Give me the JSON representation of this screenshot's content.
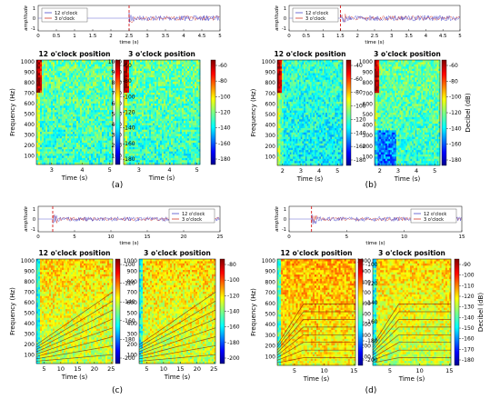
{
  "panels": [
    {
      "label": "(a)",
      "waveform": {
        "ylabel": "amplitude",
        "xlabel": "time (s)",
        "xticks": [
          "0",
          "0.5",
          "1",
          "1.5",
          "2",
          "2.5",
          "3",
          "3.5",
          "4",
          "4.5",
          "5"
        ],
        "yticks": [
          "1",
          "0",
          "-1"
        ],
        "legend": [
          "12 o'clock",
          "3 o'clock"
        ],
        "legend_pos": "top-left",
        "dashed_line_x": "2.5"
      },
      "spectrograms": [
        {
          "title": "12 o'clock position",
          "xticks": [
            "3",
            "4",
            "5"
          ],
          "xlabel": "Time (s)"
        },
        {
          "title": "3 o'clock position",
          "xticks": [
            "3",
            "4",
            "5"
          ],
          "xlabel": "Time (s)"
        }
      ],
      "ylabel": "Frequency (Hz)",
      "yticks": [
        "1000",
        "900",
        "800",
        "700",
        "600",
        "500",
        "400",
        "300",
        "200",
        "100"
      ],
      "colorbars": [
        {
          "ticks": [
            "-60",
            "-80",
            "-100",
            "-120",
            "-140",
            "-160",
            "-180"
          ],
          "label": ""
        },
        {
          "ticks": [
            "-60",
            "-80",
            "-100",
            "-120",
            "-140",
            "-160",
            "-180"
          ],
          "label": ""
        }
      ]
    },
    {
      "label": "(b)",
      "waveform": {
        "ylabel": "amplitude",
        "xlabel": "time (s)",
        "xticks": [
          "0",
          "0.5",
          "1",
          "1.5",
          "2",
          "2.5",
          "3",
          "3.5",
          "4",
          "4.5",
          "5"
        ],
        "yticks": [
          "1",
          "0",
          "-1"
        ],
        "legend": [
          "12 o'clock",
          "3 o'clock"
        ],
        "legend_pos": "top-left",
        "dashed_line_x": "1.5"
      },
      "spectrograms": [
        {
          "title": "12 o'clock position",
          "xticks": [
            "2",
            "3",
            "4",
            "5"
          ],
          "xlabel": "Time (s)"
        },
        {
          "title": "3 o'clock position",
          "xticks": [
            "2",
            "3",
            "4",
            "5"
          ],
          "xlabel": "Time (s)"
        }
      ],
      "ylabel": "Frequency (Hz)",
      "yticks": [
        "1000",
        "900",
        "800",
        "700",
        "600",
        "500",
        "400",
        "300",
        "200",
        "100"
      ],
      "colorbars": [
        {
          "ticks": [
            "-40",
            "-60",
            "-80",
            "-100",
            "-120",
            "-140",
            "-160",
            "-180"
          ],
          "label": ""
        },
        {
          "ticks": [
            "-60",
            "-80",
            "-100",
            "-120",
            "-140",
            "-160",
            "-180"
          ],
          "label": "Decibel (dB)"
        }
      ]
    },
    {
      "label": "(c)",
      "waveform": {
        "ylabel": "amplitude",
        "xlabel": "time (s)",
        "xticks": [
          "0",
          "5",
          "10",
          "15",
          "20",
          "25"
        ],
        "yticks": [
          "1",
          "0",
          "-1"
        ],
        "legend": [
          "12 o'clock",
          "3 o'clock"
        ],
        "legend_pos": "right",
        "dashed_line_x": "2"
      },
      "spectrograms": [
        {
          "title": "12 o'clock position",
          "xticks": [
            "5",
            "10",
            "15",
            "20",
            "25"
          ],
          "xlabel": "Time (s)"
        },
        {
          "title": "3 o'clock position",
          "xticks": [
            "5",
            "10",
            "15",
            "20",
            "25"
          ],
          "xlabel": "Time (s)"
        }
      ],
      "ylabel": "Frequency (Hz)",
      "yticks": [
        "1000",
        "900",
        "800",
        "700",
        "600",
        "500",
        "400",
        "300",
        "200",
        "100"
      ],
      "colorbars": [
        {
          "ticks": [
            "-100",
            "-120",
            "-140",
            "-160",
            "-180",
            "-200"
          ],
          "label": ""
        },
        {
          "ticks": [
            "-80",
            "-100",
            "-120",
            "-140",
            "-160",
            "-180",
            "-200"
          ],
          "label": ""
        }
      ]
    },
    {
      "label": "(d)",
      "waveform": {
        "ylabel": "amplitude",
        "xlabel": "time (s)",
        "xticks": [
          "0",
          "5",
          "10",
          "15"
        ],
        "yticks": [
          "1",
          "0",
          "-1"
        ],
        "legend": [
          "12 o'clock",
          "3 o'clock"
        ],
        "legend_pos": "right",
        "dashed_line_x": "2"
      },
      "spectrograms": [
        {
          "title": "12 o'clock position",
          "xticks": [
            "5",
            "10",
            "15"
          ],
          "xlabel": "Time (s)"
        },
        {
          "title": "3 o'clock position",
          "xticks": [
            "5",
            "10",
            "15"
          ],
          "xlabel": "Time (s)"
        }
      ],
      "ylabel": "Frequency (Hz)",
      "yticks": [
        "1000",
        "900",
        "800",
        "700",
        "600",
        "500",
        "400",
        "300",
        "200",
        "100"
      ],
      "colorbars": [
        {
          "ticks": [
            "-100",
            "-120",
            "-140",
            "-160",
            "-180",
            "-200"
          ],
          "label": ""
        },
        {
          "ticks": [
            "-90",
            "-100",
            "-110",
            "-120",
            "-130",
            "-140",
            "-150",
            "-160",
            "-170",
            "-180"
          ],
          "label": "Decibel (dB)"
        }
      ]
    }
  ],
  "colors": {
    "series_12": "#4b4bcc",
    "series_3": "#d23a2a",
    "marker_line": "#d00000",
    "colormap": [
      "#00008f",
      "#0000ff",
      "#0080ff",
      "#00ffff",
      "#80ff80",
      "#ffff00",
      "#ff8000",
      "#ff0000",
      "#800000"
    ]
  },
  "chart_data": [
    {
      "panel": "(a)",
      "type": "line",
      "xlabel": "time (s)",
      "ylabel": "amplitude",
      "xlim": [
        0,
        5
      ],
      "ylim": [
        -1,
        1
      ],
      "series": [
        {
          "name": "12 o'clock"
        },
        {
          "name": "3 o'clock"
        }
      ],
      "event_marker_x": 2.5
    },
    {
      "panel": "(a)",
      "type": "heatmap",
      "title": "12 o'clock position",
      "xlabel": "Time (s)",
      "ylabel": "Frequency (Hz)",
      "xlim": [
        2.5,
        5
      ],
      "ylim": [
        0,
        1000
      ],
      "clim": [
        -190,
        -50
      ]
    },
    {
      "panel": "(a)",
      "type": "heatmap",
      "title": "3 o'clock position",
      "xlabel": "Time (s)",
      "xlim": [
        2.5,
        5
      ],
      "ylim": [
        0,
        1000
      ],
      "clim": [
        -190,
        -50
      ]
    },
    {
      "panel": "(b)",
      "type": "line",
      "xlabel": "time (s)",
      "ylabel": "amplitude",
      "xlim": [
        0,
        5
      ],
      "ylim": [
        -1,
        1
      ],
      "series": [
        {
          "name": "12 o'clock"
        },
        {
          "name": "3 o'clock"
        }
      ],
      "event_marker_x": 1.5
    },
    {
      "panel": "(b)",
      "type": "heatmap",
      "title": "12 o'clock position",
      "xlabel": "Time (s)",
      "ylabel": "Frequency (Hz)",
      "xlim": [
        1.5,
        5
      ],
      "ylim": [
        0,
        1000
      ],
      "clim": [
        -190,
        -30
      ]
    },
    {
      "panel": "(b)",
      "type": "heatmap",
      "title": "3 o'clock position",
      "xlabel": "Time (s)",
      "xlim": [
        1.5,
        5
      ],
      "ylim": [
        0,
        1000
      ],
      "clim": [
        -190,
        -50
      ]
    },
    {
      "panel": "(c)",
      "type": "line",
      "xlabel": "time (s)",
      "ylabel": "amplitude",
      "xlim": [
        0,
        25
      ],
      "ylim": [
        -1,
        1
      ],
      "series": [
        {
          "name": "12 o'clock"
        },
        {
          "name": "3 o'clock"
        }
      ],
      "event_marker_x": 2
    },
    {
      "panel": "(c)",
      "type": "heatmap",
      "title": "12 o'clock position",
      "xlabel": "Time (s)",
      "ylabel": "Frequency (Hz)",
      "xlim": [
        2,
        25
      ],
      "ylim": [
        0,
        1000
      ],
      "clim": [
        -210,
        -90
      ]
    },
    {
      "panel": "(c)",
      "type": "heatmap",
      "title": "3 o'clock position",
      "xlabel": "Time (s)",
      "xlim": [
        2,
        25
      ],
      "ylim": [
        0,
        1000
      ],
      "clim": [
        -210,
        -70
      ]
    },
    {
      "panel": "(d)",
      "type": "line",
      "xlabel": "time (s)",
      "ylabel": "amplitude",
      "xlim": [
        0,
        15
      ],
      "ylim": [
        -1,
        1
      ],
      "series": [
        {
          "name": "12 o'clock"
        },
        {
          "name": "3 o'clock"
        }
      ],
      "event_marker_x": 2
    },
    {
      "panel": "(d)",
      "type": "heatmap",
      "title": "12 o'clock position",
      "xlabel": "Time (s)",
      "ylabel": "Frequency (Hz)",
      "xlim": [
        2,
        15
      ],
      "ylim": [
        0,
        1000
      ],
      "clim": [
        -210,
        -90
      ]
    },
    {
      "panel": "(d)",
      "type": "heatmap",
      "title": "3 o'clock position",
      "xlabel": "Time (s)",
      "xlim": [
        2,
        15
      ],
      "ylim": [
        0,
        1000
      ],
      "clim": [
        -185,
        -85
      ]
    }
  ]
}
